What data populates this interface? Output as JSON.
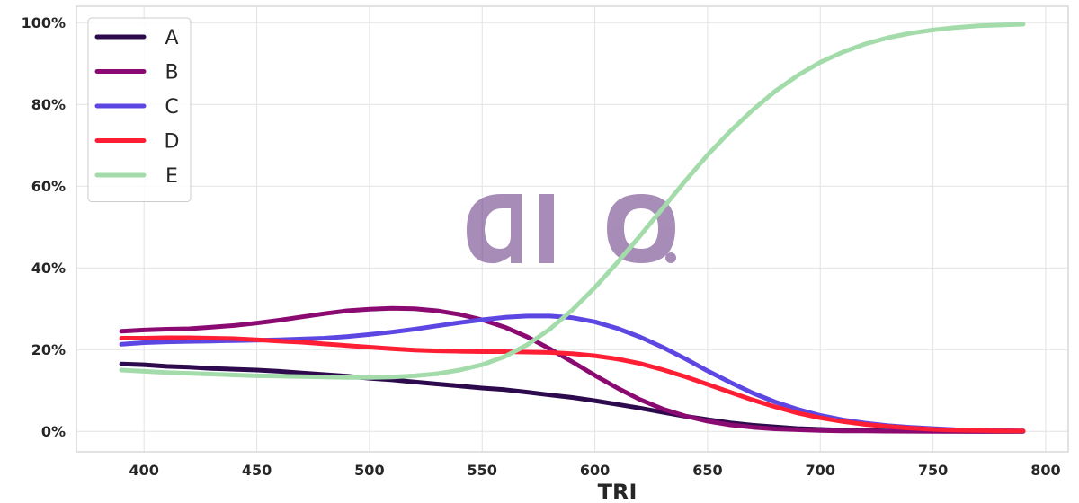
{
  "chart_data": {
    "type": "line",
    "title": "",
    "xlabel": "TRI",
    "ylabel": "",
    "xlim": [
      370,
      810
    ],
    "ylim": [
      -5,
      104
    ],
    "x_ticks": [
      400,
      450,
      500,
      550,
      600,
      650,
      700,
      750,
      800
    ],
    "x_tick_labels": [
      "400",
      "450",
      "500",
      "550",
      "600",
      "650",
      "700",
      "750",
      "800"
    ],
    "y_ticks": [
      0,
      20,
      40,
      60,
      80,
      100
    ],
    "y_tick_labels": [
      "0%",
      "20%",
      "40%",
      "60%",
      "80%",
      "100%"
    ],
    "grid": true,
    "legend_position": "top-left",
    "watermark": "aio.",
    "x": [
      390,
      400,
      410,
      420,
      430,
      440,
      450,
      460,
      470,
      480,
      490,
      500,
      510,
      520,
      530,
      540,
      550,
      560,
      570,
      580,
      590,
      600,
      610,
      620,
      630,
      640,
      650,
      660,
      670,
      680,
      690,
      700,
      710,
      720,
      730,
      740,
      750,
      760,
      770,
      780,
      790
    ],
    "series": [
      {
        "name": "A",
        "color": "#2d0a4e",
        "values": [
          16.5,
          16.3,
          15.9,
          15.7,
          15.4,
          15.2,
          15.0,
          14.7,
          14.3,
          13.9,
          13.5,
          13.0,
          12.6,
          12.1,
          11.6,
          11.1,
          10.6,
          10.2,
          9.6,
          8.9,
          8.3,
          7.5,
          6.6,
          5.7,
          4.7,
          3.7,
          2.9,
          2.1,
          1.5,
          1.1,
          0.7,
          0.5,
          0.3,
          0.2,
          0.1,
          0.1,
          0.05,
          0.03,
          0.02,
          0.01,
          0.0
        ]
      },
      {
        "name": "B",
        "color": "#8b0a72",
        "values": [
          24.5,
          24.8,
          25.0,
          25.1,
          25.5,
          25.9,
          26.5,
          27.2,
          28.0,
          28.8,
          29.5,
          29.9,
          30.1,
          30.0,
          29.5,
          28.6,
          27.3,
          25.5,
          23.1,
          20.2,
          17.0,
          13.7,
          10.6,
          7.8,
          5.5,
          3.8,
          2.5,
          1.6,
          1.0,
          0.6,
          0.4,
          0.2,
          0.1,
          0.1,
          0.05,
          0.03,
          0.02,
          0.01,
          0.0,
          0.0,
          0.0
        ]
      },
      {
        "name": "C",
        "color": "#5d47e3",
        "values": [
          21.3,
          21.7,
          21.9,
          22.0,
          22.1,
          22.2,
          22.3,
          22.4,
          22.6,
          22.8,
          23.2,
          23.7,
          24.3,
          25.0,
          25.8,
          26.6,
          27.3,
          27.9,
          28.2,
          28.2,
          27.8,
          26.8,
          25.2,
          23.1,
          20.6,
          17.8,
          14.8,
          12.0,
          9.4,
          7.2,
          5.4,
          3.9,
          2.8,
          2.0,
          1.4,
          1.0,
          0.7,
          0.4,
          0.3,
          0.2,
          0.1
        ]
      },
      {
        "name": "D",
        "color": "#ff1f35",
        "values": [
          22.8,
          22.8,
          22.9,
          22.9,
          22.8,
          22.7,
          22.4,
          22.1,
          21.8,
          21.4,
          21.0,
          20.6,
          20.2,
          19.9,
          19.7,
          19.6,
          19.5,
          19.5,
          19.4,
          19.3,
          19.0,
          18.5,
          17.7,
          16.6,
          15.1,
          13.4,
          11.5,
          9.6,
          7.7,
          6.0,
          4.5,
          3.3,
          2.4,
          1.7,
          1.2,
          0.8,
          0.5,
          0.3,
          0.2,
          0.1,
          0.1
        ]
      },
      {
        "name": "E",
        "color": "#a3dcaa",
        "values": [
          15.0,
          14.7,
          14.4,
          14.2,
          14.0,
          13.8,
          13.6,
          13.5,
          13.4,
          13.3,
          13.2,
          13.2,
          13.3,
          13.6,
          14.1,
          15.0,
          16.3,
          18.3,
          21.2,
          25.0,
          29.7,
          35.2,
          41.3,
          47.8,
          54.5,
          61.2,
          67.6,
          73.4,
          78.6,
          83.2,
          87.1,
          90.3,
          92.8,
          94.8,
          96.3,
          97.4,
          98.2,
          98.8,
          99.2,
          99.4,
          99.6
        ]
      }
    ]
  }
}
